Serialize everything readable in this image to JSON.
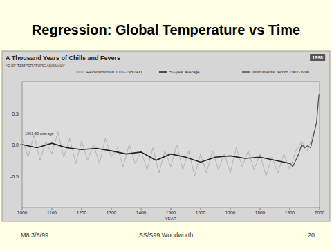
{
  "slide": {
    "title": "Regression: Global Temperature vs Time",
    "footer": {
      "left": "M8 3/8/99",
      "center": "SS/S99 Woodworth",
      "right": "20"
    }
  },
  "chart_data": {
    "type": "line",
    "title": "A Thousand Years of Chills and Fevers",
    "y_label": "°C OF TEMPERATURE ANOMALY",
    "x_label": "YEAR",
    "annotations": [
      "1998",
      "1961-90 average"
    ],
    "xlim": [
      1000,
      2000
    ],
    "xticks": [
      1000,
      1100,
      1200,
      1300,
      1400,
      1500,
      1600,
      1700,
      1800,
      1900,
      2000
    ],
    "ylim": [
      -1.0,
      1.0
    ],
    "yticks": [
      {
        "value": -0.5,
        "label": "-0.5"
      },
      {
        "value": 0,
        "label": "0.0"
      },
      {
        "value": 0.5,
        "label": "0.5"
      }
    ],
    "legend": "top",
    "series": [
      {
        "name": "Reconstruction 1000-1980 AD",
        "color": "#a8a8a8",
        "line_style": "solid",
        "x": [
          1000,
          1020,
          1040,
          1060,
          1080,
          1100,
          1120,
          1140,
          1160,
          1180,
          1200,
          1220,
          1240,
          1260,
          1280,
          1300,
          1320,
          1340,
          1360,
          1380,
          1400,
          1420,
          1440,
          1460,
          1480,
          1500,
          1520,
          1540,
          1560,
          1580,
          1600,
          1620,
          1640,
          1660,
          1680,
          1700,
          1720,
          1740,
          1760,
          1780,
          1800,
          1820,
          1840,
          1860,
          1880,
          1900,
          1920,
          1940,
          1960,
          1980
        ],
        "values": [
          0.1,
          -0.2,
          0.15,
          -0.25,
          0.05,
          -0.15,
          0.2,
          -0.2,
          0.1,
          -0.3,
          0.05,
          -0.25,
          0.0,
          -0.3,
          0.1,
          -0.2,
          -0.05,
          -0.35,
          0.0,
          -0.3,
          -0.1,
          -0.4,
          -0.05,
          -0.45,
          -0.1,
          -0.35,
          0.0,
          -0.4,
          -0.1,
          -0.5,
          -0.15,
          -0.45,
          -0.1,
          -0.4,
          -0.15,
          -0.45,
          -0.05,
          -0.35,
          -0.1,
          -0.4,
          -0.15,
          -0.5,
          -0.2,
          -0.45,
          -0.15,
          -0.4,
          -0.1,
          0.05,
          -0.1,
          0.2
        ]
      },
      {
        "name": "50-year average",
        "color": "#222222",
        "line_style": "solid",
        "x": [
          1000,
          1050,
          1100,
          1150,
          1200,
          1250,
          1300,
          1350,
          1400,
          1450,
          1500,
          1550,
          1600,
          1650,
          1700,
          1750,
          1800,
          1850,
          1900
        ],
        "values": [
          0.0,
          -0.05,
          0.02,
          -0.05,
          -0.08,
          -0.06,
          -0.1,
          -0.15,
          -0.12,
          -0.25,
          -0.15,
          -0.2,
          -0.28,
          -0.2,
          -0.18,
          -0.22,
          -0.2,
          -0.25,
          -0.3
        ]
      },
      {
        "name": "Instrumental record 1902-1998",
        "color": "#555555",
        "line_style": "solid",
        "x": [
          1902,
          1910,
          1920,
          1930,
          1940,
          1950,
          1960,
          1970,
          1980,
          1990,
          1998
        ],
        "values": [
          -0.3,
          -0.35,
          -0.25,
          -0.15,
          0.0,
          -0.05,
          -0.02,
          -0.05,
          0.15,
          0.35,
          0.8
        ]
      }
    ]
  }
}
